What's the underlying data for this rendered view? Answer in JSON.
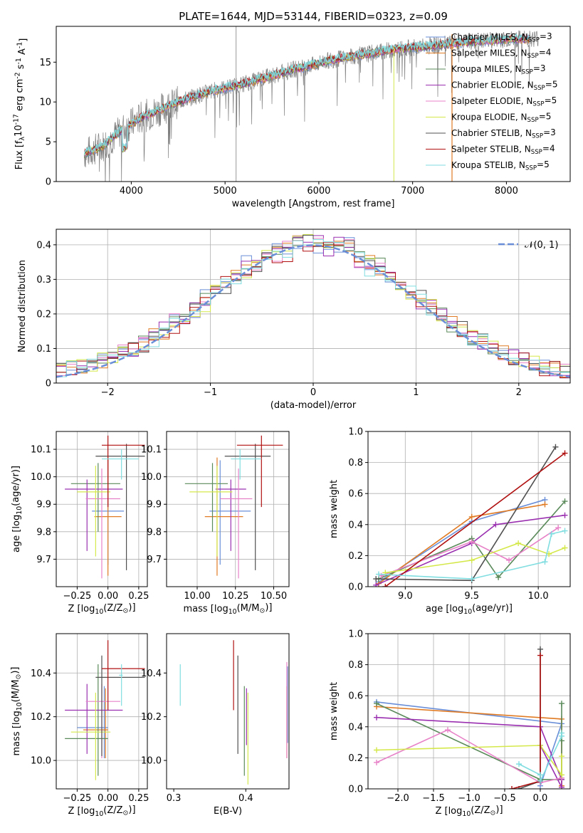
{
  "colors": {
    "series": [
      "#6a8fd8",
      "#e07b24",
      "#5a8a5a",
      "#9a30b0",
      "#e882c8",
      "#d4e84a",
      "#505050",
      "#b01010",
      "#80dde0"
    ],
    "spectrum": "#808080",
    "normal": "#6a8fd8",
    "grid": "#b0b0b0"
  },
  "series_names": [
    "Chabrier MILES, N$_{SSP}$=3",
    "Salpeter MILES, N$_{SSP}$=4",
    "Kroupa MILES, N$_{SSP}$=3",
    "Chabrier ELODIE, N$_{SSP}$=5",
    "Salpeter ELODIE, N$_{SSP}$=5",
    "Kroupa ELODIE, N$_{SSP}$=5",
    "Chabrier STELIB, N$_{SSP}$=3",
    "Salpeter STELIB, N$_{SSP}$=4",
    "Kroupa STELIB, N$_{SSP}$=5"
  ],
  "chart_data": [
    {
      "id": "spectrum",
      "type": "line",
      "title": "PLATE=1644, MJD=53144, FIBERID=0323, z=0.09",
      "xlabel": "wavelength [Angstrom, rest frame]",
      "ylabel": "Flux [f$_\\lambda$10$^{-17}$ erg cm$^{-2}$ s$^{-1}$ A$^{-1}$]",
      "xlim": [
        3200,
        8680
      ],
      "ylim": [
        0,
        19.5
      ],
      "xticks": [
        4000,
        5000,
        6000,
        7000,
        8000
      ],
      "yticks": [
        0,
        5,
        10,
        15
      ],
      "grid": false,
      "legend": "right",
      "continuum": {
        "x": [
          3500,
          3700,
          3900,
          4100,
          4300,
          4500,
          4700,
          4900,
          5100,
          5300,
          5500,
          5700,
          5900,
          6100,
          6300,
          6500,
          6700,
          6900,
          7100,
          7300,
          7500,
          7700,
          7900,
          8100,
          8300
        ],
        "y": [
          3.5,
          4.5,
          6.5,
          8.0,
          9.0,
          10.0,
          10.8,
          11.5,
          12.0,
          12.6,
          13.3,
          14.0,
          14.5,
          15.2,
          15.6,
          16.0,
          16.4,
          16.7,
          16.9,
          17.2,
          17.4,
          17.6,
          17.8,
          17.9,
          18.0
        ]
      },
      "observed_x_range": [
        3500,
        8350
      ],
      "model_x_range": [
        3500,
        8250
      ]
    },
    {
      "id": "residuals",
      "type": "line",
      "xlabel": "(data-model)/error",
      "ylabel": "Normed distribution",
      "xlim": [
        -2.5,
        2.5
      ],
      "ylim": [
        0,
        0.445
      ],
      "xticks": [
        -2,
        -1,
        0,
        1,
        2
      ],
      "yticks": [
        0,
        0.1,
        0.2,
        0.3,
        0.4
      ],
      "grid": true,
      "legend": "top-right",
      "normal_label": "$\\mathcal{N}(0, 1)$",
      "normal": {
        "mean": 0,
        "sigma": 1
      }
    },
    {
      "id": "age_vs_Z",
      "type": "scatter",
      "xlabel": "Z [log$_{10}$(Z/Z$_\\odot$)]",
      "ylabel": "age  [log$_{10}$(age/yr)]",
      "xlim": [
        -0.42,
        0.32
      ],
      "ylim": [
        9.6,
        10.165
      ],
      "xticks": [
        -0.25,
        0.0,
        0.25
      ],
      "xticklabels": [
        "−0.25",
        "0.00",
        "0.25"
      ],
      "yticks": [
        9.7,
        9.8,
        9.9,
        10.0,
        10.1
      ],
      "yticklabels": [
        "9.7",
        "9.8",
        "9.9",
        "10.0",
        "10.1"
      ],
      "grid": true,
      "points": [
        {
          "x": 0.0,
          "y": 9.875,
          "x_lo": -0.13,
          "x_hi": 0.13,
          "y_lo": 9.68,
          "y_hi": 10.06
        },
        {
          "x": 0.0,
          "y": 9.855,
          "x_lo": -0.11,
          "x_hi": 0.11,
          "y_lo": 9.64,
          "y_hi": 10.07
        },
        {
          "x": -0.08,
          "y": 9.975,
          "x_lo": -0.3,
          "x_hi": 0.1,
          "y_lo": 9.8,
          "y_hi": 10.05
        },
        {
          "x": -0.17,
          "y": 9.955,
          "x_lo": -0.35,
          "x_hi": 0.12,
          "y_lo": 9.73,
          "y_hi": 9.99
        },
        {
          "x": -0.05,
          "y": 9.92,
          "x_lo": -0.18,
          "x_hi": 0.1,
          "y_lo": 9.63,
          "y_hi": 10.03
        },
        {
          "x": -0.1,
          "y": 9.945,
          "x_lo": -0.25,
          "x_hi": 0.02,
          "y_lo": 9.71,
          "y_hi": 10.04
        },
        {
          "x": 0.15,
          "y": 10.075,
          "x_lo": -0.1,
          "x_hi": 0.3,
          "y_lo": 9.66,
          "y_hi": 10.12
        },
        {
          "x": 0.0,
          "y": 10.115,
          "x_lo": -0.05,
          "x_hi": 0.3,
          "y_lo": 9.89,
          "y_hi": 10.15
        },
        {
          "x": 0.11,
          "y": 10.065,
          "x_lo": -0.05,
          "x_hi": 0.25,
          "y_lo": 9.99,
          "y_hi": 10.1
        }
      ]
    },
    {
      "id": "age_vs_mass",
      "type": "scatter",
      "xlabel": "mass [log$_{10}$(M/M$_\\odot$)]",
      "ylabel": "",
      "xlim": [
        9.8,
        10.6
      ],
      "ylim": [
        9.6,
        10.165
      ],
      "xticks": [
        10.0,
        10.25,
        10.5
      ],
      "xticklabels": [
        "10.00",
        "10.25",
        "10.50"
      ],
      "yticks": [
        9.7,
        9.8,
        9.9,
        10.0,
        10.1
      ],
      "yticklabels": [
        "9.7",
        "9.8",
        "9.9",
        "10.0",
        "10.1"
      ],
      "grid": true,
      "points": [
        {
          "x": 10.15,
          "y": 9.875,
          "x_lo": 10.08,
          "x_hi": 10.35,
          "y_lo": 9.68,
          "y_hi": 10.06
        },
        {
          "x": 10.13,
          "y": 9.855,
          "x_lo": 10.05,
          "x_hi": 10.3,
          "y_lo": 9.64,
          "y_hi": 10.07
        },
        {
          "x": 10.1,
          "y": 9.975,
          "x_lo": 9.92,
          "x_hi": 10.2,
          "y_lo": 9.8,
          "y_hi": 10.05
        },
        {
          "x": 10.22,
          "y": 9.955,
          "x_lo": 10.12,
          "x_hi": 10.32,
          "y_lo": 9.73,
          "y_hi": 9.99
        },
        {
          "x": 10.27,
          "y": 9.92,
          "x_lo": 10.15,
          "x_hi": 10.36,
          "y_lo": 9.63,
          "y_hi": 10.03
        },
        {
          "x": 10.13,
          "y": 9.945,
          "x_lo": 9.95,
          "x_hi": 10.23,
          "y_lo": 9.71,
          "y_hi": 10.04
        },
        {
          "x": 10.38,
          "y": 10.075,
          "x_lo": 10.18,
          "x_hi": 10.48,
          "y_lo": 9.66,
          "y_hi": 10.12
        },
        {
          "x": 10.42,
          "y": 10.115,
          "x_lo": 10.26,
          "x_hi": 10.56,
          "y_lo": 9.89,
          "y_hi": 10.15
        },
        {
          "x": 10.28,
          "y": 10.065,
          "x_lo": 10.22,
          "x_hi": 10.42,
          "y_lo": 9.99,
          "y_hi": 10.1
        }
      ]
    },
    {
      "id": "weight_vs_age",
      "type": "line",
      "xlabel": "age  [log$_{10}$(age/yr)]",
      "ylabel": "mass weight",
      "xlim": [
        8.72,
        10.24
      ],
      "ylim": [
        0,
        1.0
      ],
      "xticks": [
        9.0,
        9.5,
        10.0
      ],
      "xticklabels": [
        "9.0",
        "9.5",
        "10.0"
      ],
      "yticks": [
        0,
        0.2,
        0.4,
        0.6,
        0.8,
        1.0
      ],
      "yticklabels": [
        "0.0",
        "0.2",
        "0.4",
        "0.6",
        "0.8",
        "1.0"
      ],
      "grid": true,
      "series": [
        {
          "x": [
            8.8,
            9.5,
            10.05
          ],
          "y": [
            0.03,
            0.42,
            0.56
          ]
        },
        {
          "x": [
            8.8,
            9.5,
            10.05
          ],
          "y": [
            0.02,
            0.45,
            0.53
          ]
        },
        {
          "x": [
            8.8,
            9.5,
            9.7,
            10.2
          ],
          "y": [
            0.05,
            0.31,
            0.06,
            0.55
          ]
        },
        {
          "x": [
            8.78,
            9.5,
            9.68,
            10.2
          ],
          "y": [
            0.01,
            0.28,
            0.4,
            0.46
          ]
        },
        {
          "x": [
            8.82,
            9.5,
            9.78,
            10.15
          ],
          "y": [
            0.07,
            0.29,
            0.17,
            0.38
          ]
        },
        {
          "x": [
            8.85,
            9.5,
            9.85,
            10.08,
            10.2
          ],
          "y": [
            0.09,
            0.17,
            0.28,
            0.21,
            0.25
          ]
        },
        {
          "x": [
            8.78,
            9.5,
            10.13
          ],
          "y": [
            0.05,
            0.04,
            0.9
          ]
        },
        {
          "x": [
            8.85,
            10.2
          ],
          "y": [
            0.0,
            0.86
          ]
        },
        {
          "x": [
            8.8,
            9.5,
            10.05,
            10.1,
            10.2
          ],
          "y": [
            0.08,
            0.05,
            0.16,
            0.34,
            0.36
          ]
        }
      ]
    },
    {
      "id": "mass_vs_Z",
      "type": "scatter",
      "xlabel": "Z [log$_{10}$(Z/Z$_\\odot$)]",
      "ylabel": "mass [log$_{10}$(M/M$_\\odot$)]",
      "xlim": [
        -0.42,
        0.32
      ],
      "ylim": [
        9.87,
        10.58
      ],
      "xticks": [
        -0.25,
        0.0,
        0.25
      ],
      "xticklabels": [
        "−0.25",
        "0.00",
        "0.25"
      ],
      "yticks": [
        10.0,
        10.2,
        10.4
      ],
      "yticklabels": [
        "10.0",
        "10.2",
        "10.4"
      ],
      "grid": true,
      "points": [
        {
          "x": -0.03,
          "y": 10.15,
          "x_lo": -0.25,
          "x_hi": 0.0,
          "y_lo": 10.01,
          "y_hi": 10.34
        },
        {
          "x": -0.02,
          "y": 10.14,
          "x_lo": -0.2,
          "x_hi": 0.0,
          "y_lo": 10.01,
          "y_hi": 10.33
        },
        {
          "x": -0.08,
          "y": 10.1,
          "x_lo": -0.35,
          "x_hi": 0.0,
          "y_lo": 9.93,
          "y_hi": 10.44
        },
        {
          "x": -0.17,
          "y": 10.23,
          "x_lo": -0.35,
          "x_hi": 0.12,
          "y_lo": 10.03,
          "y_hi": 10.35
        },
        {
          "x": -0.05,
          "y": 10.27,
          "x_lo": -0.18,
          "x_hi": 0.1,
          "y_lo": 10.01,
          "y_hi": 10.35
        },
        {
          "x": -0.1,
          "y": 10.13,
          "x_lo": -0.3,
          "x_hi": 0.02,
          "y_lo": 9.91,
          "y_hi": 10.31
        },
        {
          "x": -0.05,
          "y": 10.38,
          "x_lo": -0.1,
          "x_hi": 0.3,
          "y_lo": 10.02,
          "y_hi": 10.48
        },
        {
          "x": 0.0,
          "y": 10.42,
          "x_lo": -0.05,
          "x_hi": 0.3,
          "y_lo": 10.23,
          "y_hi": 10.55
        },
        {
          "x": 0.11,
          "y": 10.39,
          "x_lo": 0.09,
          "x_hi": 0.12,
          "y_lo": 10.25,
          "y_hi": 10.44
        }
      ]
    },
    {
      "id": "mass_vs_EBV",
      "type": "scatter",
      "xlabel": "E(B-V)",
      "ylabel": "",
      "xlim": [
        0.29,
        0.46
      ],
      "ylim": [
        9.87,
        10.58
      ],
      "xticks": [
        0.3,
        0.4
      ],
      "xticklabels": [
        "0.3",
        "0.4"
      ],
      "yticks": [
        10.0,
        10.2,
        10.4
      ],
      "yticklabels": [
        "10.0",
        "10.2",
        "10.4"
      ],
      "grid": false,
      "points": [
        {
          "x": 0.458,
          "y": 10.2,
          "y_lo": 10.08,
          "y_hi": 10.43
        },
        {
          "x": 0.457,
          "y": 10.18,
          "y_lo": 10.01,
          "y_hi": 10.34
        },
        {
          "x": 0.398,
          "y": 10.15,
          "y_lo": 9.93,
          "y_hi": 10.34
        },
        {
          "x": 0.401,
          "y": 10.23,
          "y_lo": 10.07,
          "y_hi": 10.33
        },
        {
          "x": 0.457,
          "y": 10.3,
          "y_lo": 10.01,
          "y_hi": 10.45
        },
        {
          "x": 0.403,
          "y": 10.1,
          "y_lo": 9.89,
          "y_hi": 10.31
        },
        {
          "x": 0.389,
          "y": 10.25,
          "y_lo": 10.03,
          "y_hi": 10.48
        },
        {
          "x": 0.383,
          "y": 10.4,
          "y_lo": 10.23,
          "y_hi": 10.55
        },
        {
          "x": 0.309,
          "y": 10.36,
          "y_lo": 10.25,
          "y_hi": 10.44
        }
      ]
    },
    {
      "id": "weight_vs_Z",
      "type": "line",
      "xlabel": "Z [log$_{10}$(Z/Z$_\\odot$)]",
      "ylabel": "mass weight",
      "xlim": [
        -2.42,
        0.42
      ],
      "ylim": [
        0,
        1.0
      ],
      "xticks": [
        -2.0,
        -1.5,
        -1.0,
        -0.5,
        0.0
      ],
      "xticklabels": [
        "−2.0",
        "−1.5",
        "−1.0",
        "−0.5",
        "0.0"
      ],
      "yticks": [
        0,
        0.2,
        0.4,
        0.6,
        0.8,
        1.0
      ],
      "yticklabels": [
        "0.0",
        "0.2",
        "0.4",
        "0.6",
        "0.8",
        "1.0"
      ],
      "grid": true,
      "series": [
        {
          "x": [
            -2.3,
            0.3,
            0.0
          ],
          "y": [
            0.56,
            0.42,
            0.02
          ]
        },
        {
          "x": [
            -2.3,
            0.3,
            0.3
          ],
          "y": [
            0.53,
            0.45,
            0.02
          ]
        },
        {
          "x": [
            -2.3,
            0.0,
            0.3,
            0.3,
            0.3
          ],
          "y": [
            0.55,
            0.06,
            0.06,
            0.31,
            0.55
          ]
        },
        {
          "x": [
            -2.3,
            0.0,
            0.3,
            0.3,
            0.0
          ],
          "y": [
            0.46,
            0.4,
            0.06,
            0.01,
            0.28
          ]
        },
        {
          "x": [
            -2.3,
            -1.3,
            0.0,
            0.3
          ],
          "y": [
            0.17,
            0.38,
            0.04,
            0.07
          ]
        },
        {
          "x": [
            -2.3,
            0.0,
            0.3,
            0.3
          ],
          "y": [
            0.25,
            0.28,
            0.09,
            0.21
          ]
        },
        {
          "x": [
            -0.3,
            0.0,
            0.0
          ],
          "y": [
            0.0,
            0.05,
            0.9
          ]
        },
        {
          "x": [
            -0.4,
            0.0,
            0.0
          ],
          "y": [
            0.0,
            0.05,
            0.86
          ]
        },
        {
          "x": [
            -0.3,
            0.0,
            0.0,
            0.3,
            0.3
          ],
          "y": [
            0.16,
            0.09,
            0.05,
            0.34,
            0.36
          ]
        }
      ]
    }
  ]
}
